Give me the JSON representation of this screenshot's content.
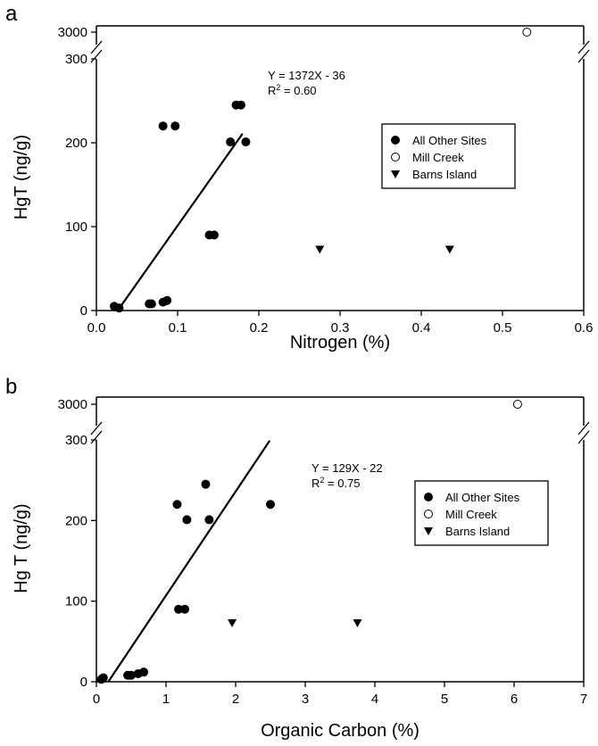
{
  "chart_data": [
    {
      "panel_label": "a",
      "type": "scatter",
      "xlabel": "Nitrogen (%)",
      "ylabel": "HgT (ng/g)",
      "xlim": [
        0,
        0.6
      ],
      "xticks": [
        "0.0",
        "0.1",
        "0.2",
        "0.3",
        "0.4",
        "0.5",
        "0.6"
      ],
      "ylim_lower": [
        0,
        300
      ],
      "yticks_lower": [
        "0",
        "100",
        "200",
        "300"
      ],
      "ytick_upper": "3000",
      "axis_break": true,
      "legend_position": "right",
      "series": [
        {
          "name": "All Other Sites",
          "marker": "filled-circle",
          "points": [
            {
              "x": 0.022,
              "y": 5
            },
            {
              "x": 0.028,
              "y": 3
            },
            {
              "x": 0.065,
              "y": 8
            },
            {
              "x": 0.068,
              "y": 8
            },
            {
              "x": 0.082,
              "y": 10
            },
            {
              "x": 0.087,
              "y": 12
            },
            {
              "x": 0.082,
              "y": 220
            },
            {
              "x": 0.097,
              "y": 220
            },
            {
              "x": 0.139,
              "y": 90
            },
            {
              "x": 0.145,
              "y": 90
            },
            {
              "x": 0.165,
              "y": 201
            },
            {
              "x": 0.184,
              "y": 201
            },
            {
              "x": 0.172,
              "y": 245
            },
            {
              "x": 0.178,
              "y": 245
            }
          ]
        },
        {
          "name": "Mill Creek",
          "marker": "open-circle",
          "points": [
            {
              "x": 0.53,
              "y": 3000
            }
          ]
        },
        {
          "name": "Barns Island",
          "marker": "filled-triangle-down",
          "points": [
            {
              "x": 0.275,
              "y": 73
            },
            {
              "x": 0.435,
              "y": 73
            }
          ]
        }
      ],
      "regression": {
        "equation": "Y = 1372X - 36",
        "r2_prefix": "R",
        "r2_sup": "2",
        "r2_value": " = 0.60",
        "slope": 1372,
        "intercept": -36,
        "x_range": [
          0.026,
          0.18
        ]
      }
    },
    {
      "panel_label": "b",
      "type": "scatter",
      "xlabel": "Organic Carbon (%)",
      "ylabel": "Hg T (ng/g)",
      "xlim": [
        0,
        7
      ],
      "xticks": [
        "0",
        "1",
        "2",
        "3",
        "4",
        "5",
        "6",
        "7"
      ],
      "ylim_lower": [
        0,
        300
      ],
      "yticks_lower": [
        "0",
        "100",
        "200",
        "300"
      ],
      "ytick_upper": "3000",
      "axis_break": true,
      "legend_position": "right",
      "series": [
        {
          "name": "All Other Sites",
          "marker": "filled-circle",
          "points": [
            {
              "x": 0.07,
              "y": 3
            },
            {
              "x": 0.1,
              "y": 5
            },
            {
              "x": 0.45,
              "y": 8
            },
            {
              "x": 0.5,
              "y": 8
            },
            {
              "x": 0.6,
              "y": 10
            },
            {
              "x": 0.68,
              "y": 12
            },
            {
              "x": 1.16,
              "y": 220
            },
            {
              "x": 2.5,
              "y": 220
            },
            {
              "x": 1.18,
              "y": 90
            },
            {
              "x": 1.27,
              "y": 90
            },
            {
              "x": 1.3,
              "y": 201
            },
            {
              "x": 1.62,
              "y": 201
            },
            {
              "x": 1.57,
              "y": 245
            }
          ]
        },
        {
          "name": "Mill Creek",
          "marker": "open-circle",
          "points": [
            {
              "x": 6.05,
              "y": 3000
            }
          ]
        },
        {
          "name": "Barns Island",
          "marker": "filled-triangle-down",
          "points": [
            {
              "x": 1.95,
              "y": 73
            },
            {
              "x": 3.75,
              "y": 73
            }
          ]
        }
      ],
      "regression": {
        "equation": "Y = 129X - 22",
        "r2_prefix": "R",
        "r2_sup": "2",
        "r2_value": " = 0.75",
        "slope": 129,
        "intercept": -22,
        "x_range": [
          0.17,
          2.49
        ]
      }
    }
  ]
}
